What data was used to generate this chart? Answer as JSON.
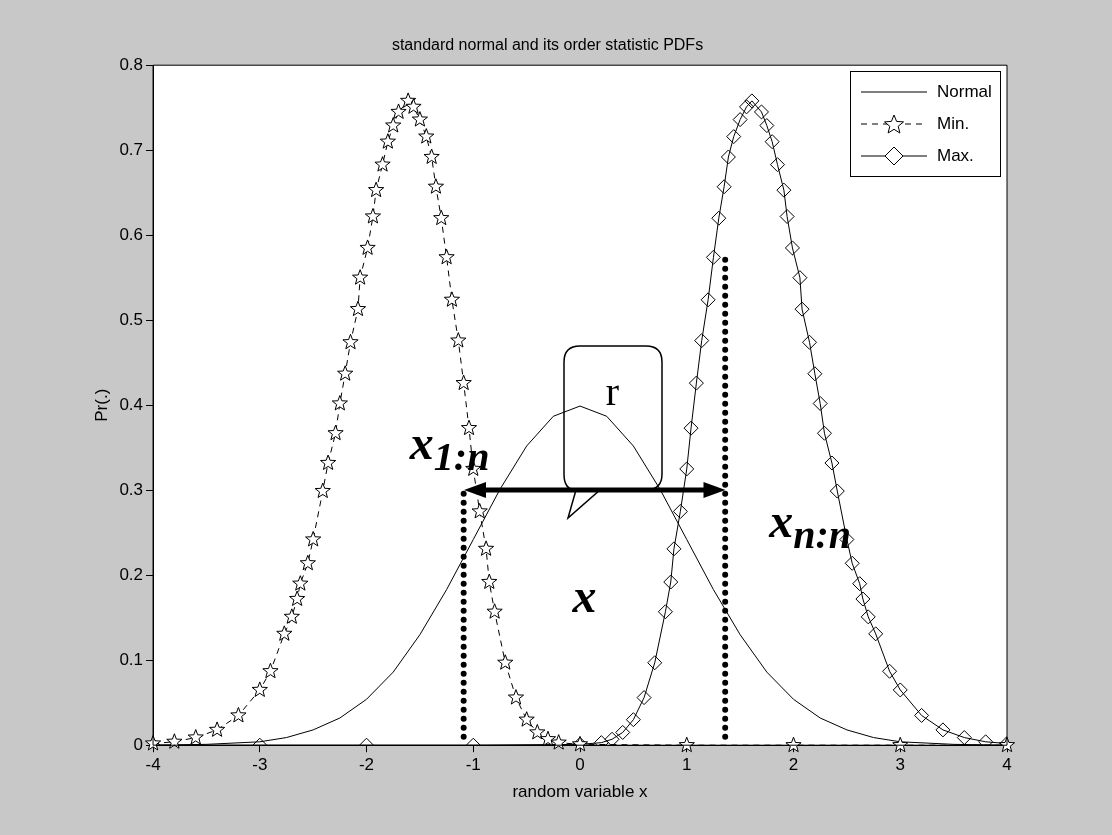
{
  "chart_data": {
    "type": "line",
    "title": "standard normal and its order statistic PDFs",
    "xlabel": "random variable x",
    "ylabel": "Pr(.)",
    "xlim": [
      -4,
      4
    ],
    "xticks": [
      -4,
      -3,
      -2,
      -1,
      0,
      1,
      2,
      3,
      4
    ],
    "ylim": [
      0,
      0.8
    ],
    "yticks": [
      0,
      0.1,
      0.2,
      0.3,
      0.4,
      0.5,
      0.6,
      0.7,
      0.8
    ],
    "grid": false,
    "legend": "top right",
    "series": [
      {
        "name": "Normal",
        "color": "#000000",
        "marker": "none",
        "line_style": "solid",
        "x": [
          -4,
          -3.5,
          -3,
          -2.75,
          -2.5,
          -2.25,
          -2,
          -1.75,
          -1.5,
          -1.25,
          -1,
          -0.75,
          -0.5,
          -0.25,
          0,
          0.25,
          0.5,
          0.75,
          1,
          1.25,
          1.5,
          1.75,
          2,
          2.25,
          2.5,
          2.75,
          3,
          3.5,
          4
        ],
        "values": [
          0,
          0.001,
          0.004,
          0.009,
          0.018,
          0.032,
          0.054,
          0.086,
          0.13,
          0.183,
          0.242,
          0.301,
          0.352,
          0.387,
          0.399,
          0.387,
          0.352,
          0.301,
          0.242,
          0.183,
          0.13,
          0.086,
          0.054,
          0.032,
          0.018,
          0.009,
          0.004,
          0.001,
          0
        ]
      },
      {
        "name": "Min.",
        "color": "#000000",
        "marker": "star",
        "line_style": "dashed",
        "x": [
          -4,
          -3.8,
          -3.6,
          -3.4,
          -3.2,
          -3,
          -2.9,
          -2.77,
          -2.7,
          -2.65,
          -2.62,
          -2.55,
          -2.5,
          -2.41,
          -2.36,
          -2.29,
          -2.25,
          -2.2,
          -2.15,
          -2.08,
          -2.06,
          -1.99,
          -1.94,
          -1.91,
          -1.85,
          -1.8,
          -1.75,
          -1.7,
          -1.61,
          -1.56,
          -1.5,
          -1.44,
          -1.39,
          -1.35,
          -1.3,
          -1.25,
          -1.2,
          -1.14,
          -1.09,
          -1.04,
          -1,
          -0.94,
          -0.88,
          -0.85,
          -0.8,
          -0.7,
          -0.6,
          -0.5,
          -0.4,
          -0.3,
          -0.2,
          0,
          1,
          2,
          3,
          4
        ],
        "values": [
          0.002,
          0.004,
          0.009,
          0.018,
          0.035,
          0.065,
          0.087,
          0.131,
          0.151,
          0.172,
          0.19,
          0.214,
          0.242,
          0.299,
          0.332,
          0.367,
          0.402,
          0.437,
          0.474,
          0.513,
          0.55,
          0.585,
          0.622,
          0.653,
          0.683,
          0.71,
          0.729,
          0.745,
          0.758,
          0.751,
          0.736,
          0.716,
          0.692,
          0.657,
          0.62,
          0.574,
          0.524,
          0.476,
          0.426,
          0.373,
          0.325,
          0.275,
          0.231,
          0.192,
          0.157,
          0.097,
          0.056,
          0.03,
          0.015,
          0.007,
          0.003,
          0.001,
          0,
          0,
          0,
          0
        ]
      },
      {
        "name": "Max.",
        "color": "#000000",
        "marker": "diamond",
        "line_style": "solid",
        "x": [
          -4,
          -3,
          -2,
          -1,
          0,
          0.2,
          0.3,
          0.4,
          0.5,
          0.6,
          0.7,
          0.8,
          0.85,
          0.88,
          0.94,
          1,
          1.04,
          1.09,
          1.14,
          1.2,
          1.25,
          1.3,
          1.35,
          1.39,
          1.44,
          1.5,
          1.56,
          1.61,
          1.7,
          1.75,
          1.8,
          1.85,
          1.91,
          1.94,
          1.99,
          2.06,
          2.08,
          2.15,
          2.2,
          2.25,
          2.29,
          2.36,
          2.41,
          2.5,
          2.55,
          2.62,
          2.65,
          2.7,
          2.77,
          2.9,
          3,
          3.2,
          3.4,
          3.6,
          3.8,
          4
        ],
        "values": [
          0,
          0,
          0,
          0,
          0.001,
          0.003,
          0.007,
          0.015,
          0.03,
          0.056,
          0.097,
          0.157,
          0.192,
          0.231,
          0.275,
          0.325,
          0.373,
          0.426,
          0.476,
          0.524,
          0.574,
          0.62,
          0.657,
          0.692,
          0.716,
          0.736,
          0.751,
          0.758,
          0.745,
          0.729,
          0.71,
          0.683,
          0.653,
          0.622,
          0.585,
          0.55,
          0.513,
          0.474,
          0.437,
          0.402,
          0.367,
          0.332,
          0.299,
          0.242,
          0.214,
          0.19,
          0.172,
          0.151,
          0.131,
          0.087,
          0.065,
          0.035,
          0.018,
          0.009,
          0.004,
          0.002
        ]
      },
      {
        "color": "#000000",
        "marker": "none",
        "line_style": "dotted",
        "x": [
          -1.09,
          -1.09
        ],
        "values": [
          0.01,
          0.3
        ]
      },
      {
        "color": "#000000",
        "marker": "none",
        "line_style": "dotted",
        "x": [
          1.36,
          1.36
        ],
        "values": [
          0.01,
          0.58
        ]
      }
    ],
    "annotations": [
      "x$_{1:n}$",
      "x$_{n:n}$",
      "x",
      "r"
    ]
  }
}
